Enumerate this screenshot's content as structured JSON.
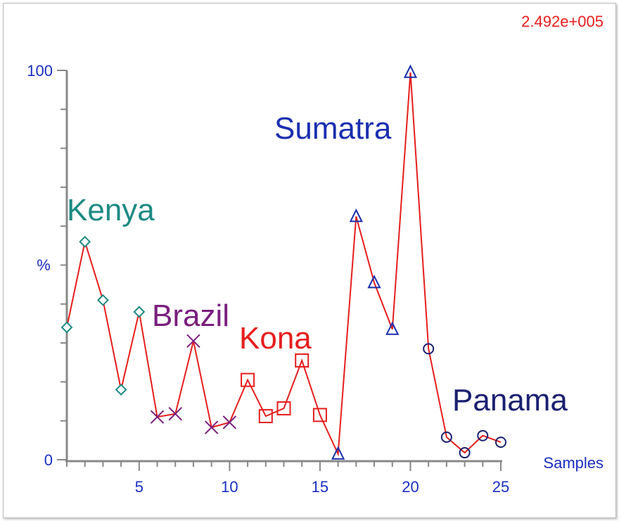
{
  "chart_data": {
    "type": "line",
    "scale_label": "2.492e+005",
    "ylabel": "%",
    "xlabel": "Samples",
    "xlim": [
      0,
      25
    ],
    "ylim": [
      0,
      100
    ],
    "yticks": [
      {
        "value": 0,
        "label": "0"
      },
      {
        "value": 100,
        "label": "100"
      }
    ],
    "xticks": [
      5,
      10,
      15,
      20,
      25
    ],
    "series": [
      {
        "name": "Kenya",
        "color": "#1e8a84",
        "marker": "diamond",
        "x": [
          1,
          2,
          3,
          4,
          5
        ],
        "y": [
          34,
          56,
          41,
          18,
          38
        ]
      },
      {
        "name": "Brazil",
        "color": "#7a1e7e",
        "marker": "x",
        "x": [
          6,
          7,
          8,
          9,
          10
        ],
        "y": [
          11,
          11.8,
          30.5,
          8.3,
          9.6
        ]
      },
      {
        "name": "Kona",
        "color": "#e61e1e",
        "marker": "square",
        "x": [
          11,
          12,
          13,
          14,
          15
        ],
        "y": [
          20.5,
          11.2,
          13.2,
          25.5,
          11.5
        ]
      },
      {
        "name": "Sumatra",
        "color": "#1a2fb0",
        "marker": "triangle",
        "x": [
          16,
          17,
          18,
          19,
          20
        ],
        "y": [
          1.5,
          62.5,
          45.5,
          33.5,
          99.5
        ]
      },
      {
        "name": "Panama",
        "color": "#1a2070",
        "marker": "circle",
        "x": [
          21,
          22,
          23,
          24,
          25
        ],
        "y": [
          28.5,
          5.8,
          1.8,
          6.2,
          4.5
        ]
      }
    ],
    "connector_color": "#e61e1e",
    "axis_color": "#888888",
    "axis_text_color": "#1a2fc0",
    "scale_label_color": "#e61e1e"
  }
}
